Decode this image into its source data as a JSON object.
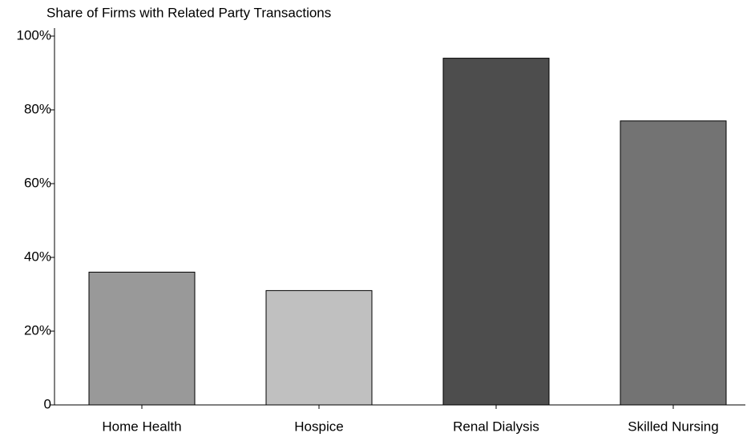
{
  "chart_data": {
    "type": "bar",
    "title": "Share of Firms with Related Party Transactions",
    "categories": [
      "Home Health",
      "Hospice",
      "Renal Dialysis",
      "Skilled Nursing"
    ],
    "values": [
      36,
      31,
      94,
      77
    ],
    "colors": [
      "#999999",
      "#c0c0c0",
      "#4d4d4d",
      "#737373"
    ],
    "ylim": [
      0,
      100
    ],
    "yticks": [
      0,
      {
        "value": 20,
        "label": "20%"
      },
      {
        "value": 40,
        "label": "40%"
      },
      {
        "value": 60,
        "label": "60%"
      },
      {
        "value": 80,
        "label": "80%"
      },
      {
        "value": 100,
        "label": "100%"
      }
    ],
    "grid": false
  }
}
